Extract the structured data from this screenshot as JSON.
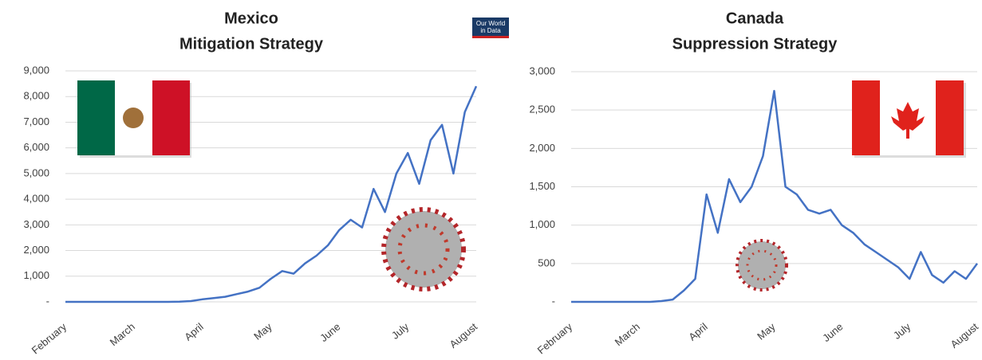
{
  "logo": [
    "Our World",
    "in Data"
  ],
  "chart_data": [
    {
      "type": "line",
      "title": "Mexico",
      "subtitle": "Mitigation Strategy",
      "categories": [
        "February",
        null,
        null,
        null,
        null,
        null,
        "March",
        null,
        null,
        null,
        null,
        null,
        "April",
        null,
        null,
        null,
        null,
        null,
        "May",
        null,
        null,
        null,
        null,
        null,
        "June",
        null,
        null,
        null,
        null,
        null,
        "July",
        null,
        null,
        null,
        null,
        null,
        "August"
      ],
      "series": [
        {
          "name": "Mexico",
          "color": "#4472c4",
          "values": [
            0,
            0,
            0,
            0,
            0,
            0,
            0,
            0,
            0,
            0,
            10,
            30,
            100,
            150,
            200,
            300,
            400,
            550,
            900,
            1200,
            1100,
            1500,
            1800,
            2200,
            2800,
            3200,
            2900,
            4400,
            3500,
            5000,
            5800,
            4600,
            6300,
            6900,
            5000,
            7400,
            8400
          ]
        }
      ],
      "ylim": [
        0,
        9000
      ],
      "yticks": [
        {
          "value": 0,
          "label": "-"
        },
        {
          "value": 1000,
          "label": "1,000"
        },
        {
          "value": 2000,
          "label": "2,000"
        },
        {
          "value": 3000,
          "label": "3,000"
        },
        {
          "value": 4000,
          "label": "4,000"
        },
        {
          "value": 5000,
          "label": "5,000"
        },
        {
          "value": 6000,
          "label": "6,000"
        },
        {
          "value": 7000,
          "label": "7,000"
        },
        {
          "value": 8000,
          "label": "8,000"
        },
        {
          "value": 9000,
          "label": "9,000"
        }
      ],
      "grid": true
    },
    {
      "type": "line",
      "title": "Canada",
      "subtitle": "Suppression Strategy",
      "categories": [
        "February",
        null,
        null,
        null,
        null,
        null,
        "March",
        null,
        null,
        null,
        null,
        null,
        "April",
        null,
        null,
        null,
        null,
        null,
        "May",
        null,
        null,
        null,
        null,
        null,
        "June",
        null,
        null,
        null,
        null,
        null,
        "July",
        null,
        null,
        null,
        null,
        null,
        "August"
      ],
      "series": [
        {
          "name": "Canada",
          "color": "#4472c4",
          "values": [
            0,
            0,
            0,
            0,
            0,
            0,
            0,
            0,
            10,
            30,
            150,
            300,
            1400,
            900,
            1600,
            1300,
            1500,
            1900,
            2750,
            1500,
            1400,
            1200,
            1150,
            1200,
            1000,
            900,
            750,
            650,
            550,
            450,
            300,
            650,
            350,
            250,
            400,
            300,
            500
          ]
        }
      ],
      "ylim": [
        0,
        3000
      ],
      "yticks": [
        {
          "value": 0,
          "label": "-"
        },
        {
          "value": 500,
          "label": "500"
        },
        {
          "value": 1000,
          "label": "1,000"
        },
        {
          "value": 1500,
          "label": "1,500"
        },
        {
          "value": 2000,
          "label": "2,000"
        },
        {
          "value": 2500,
          "label": "2,500"
        },
        {
          "value": 3000,
          "label": "3,000"
        }
      ],
      "grid": true
    }
  ]
}
